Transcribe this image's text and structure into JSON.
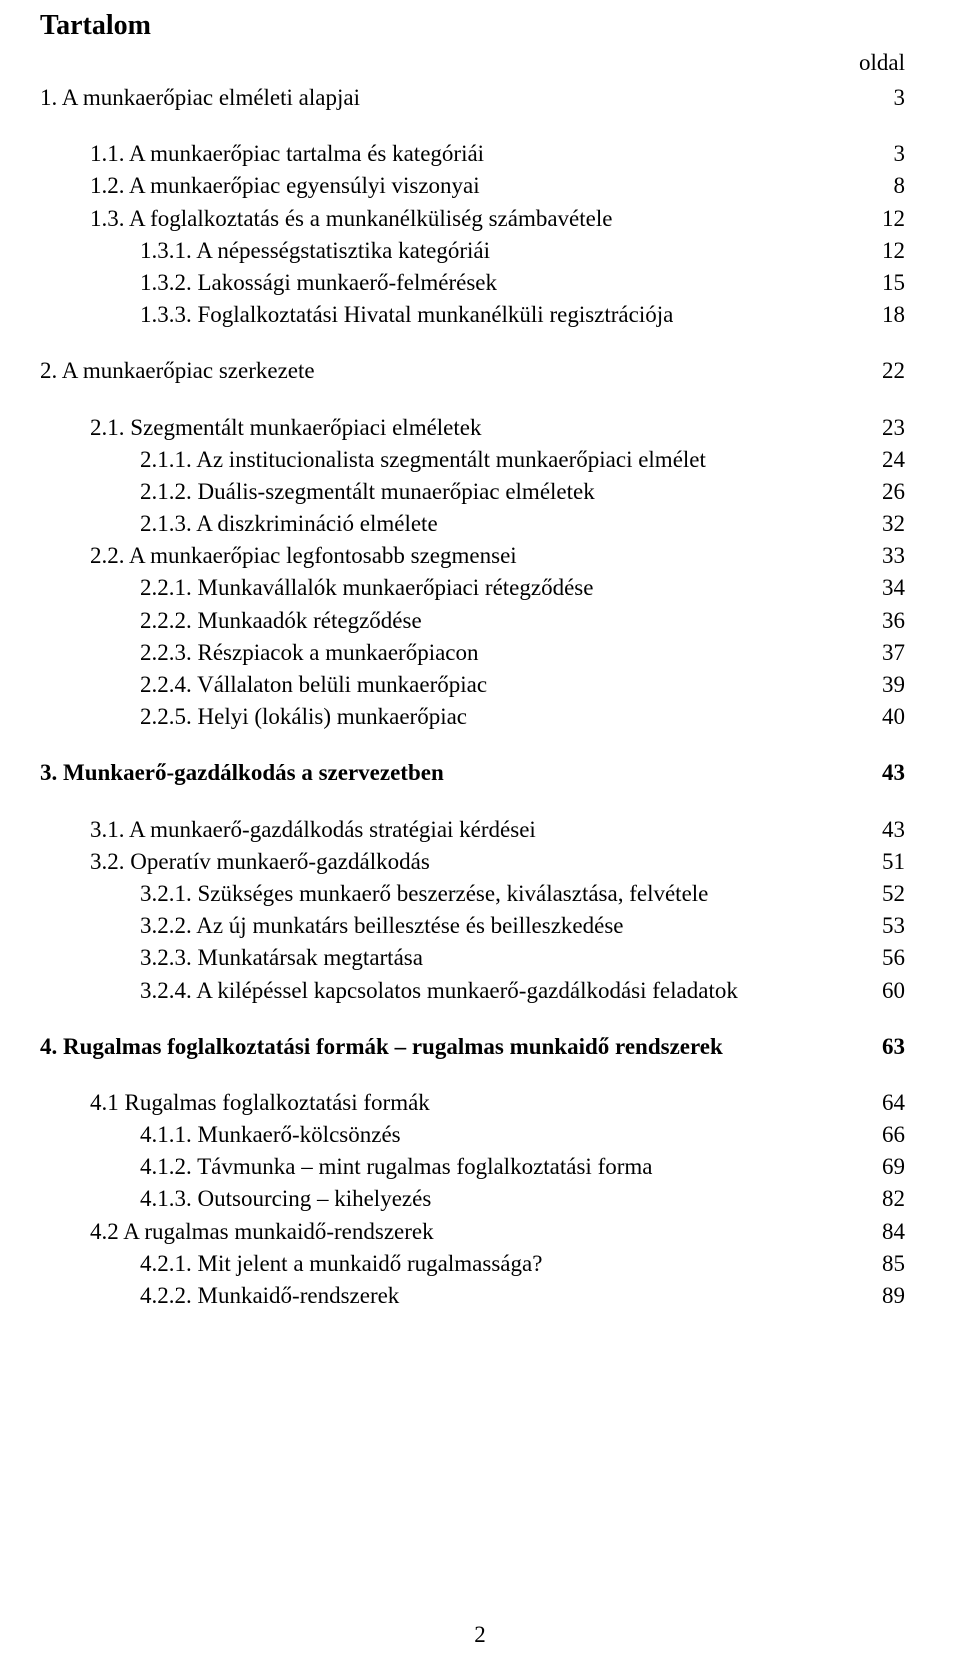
{
  "title": "Tartalom",
  "page_header_label": "oldal",
  "page_number": "2",
  "typography": {
    "font_family": "Times New Roman",
    "body_fontsize_pt": 17,
    "title_fontsize_pt": 21,
    "color": "#000000",
    "background": "#ffffff"
  },
  "entries": [
    {
      "label": "1. A munkaerőpiac elméleti alapjai",
      "page": "3",
      "bold": false,
      "indent": 0
    },
    {
      "spacer": true
    },
    {
      "label": "1.1. A munkaerőpiac tartalma és kategóriái",
      "page": "3",
      "bold": false,
      "indent": 1
    },
    {
      "label": "1.2. A munkaerőpiac egyensúlyi viszonyai",
      "page": "8",
      "bold": false,
      "indent": 1
    },
    {
      "label": "1.3. A foglalkoztatás és a munkanélküliség számbavétele",
      "page": "12",
      "bold": false,
      "indent": 1
    },
    {
      "label": "1.3.1. A népességstatisztika kategóriái",
      "page": "12",
      "bold": false,
      "indent": 2
    },
    {
      "label": "1.3.2. Lakossági munkaerő-felmérések",
      "page": "15",
      "bold": false,
      "indent": 2
    },
    {
      "label": "1.3.3. Foglalkoztatási Hivatal munkanélküli regisztrációja",
      "page": "18",
      "bold": false,
      "indent": 2
    },
    {
      "spacer": true
    },
    {
      "label": "2. A munkaerőpiac szerkezete",
      "page": "22",
      "bold": false,
      "indent": 0
    },
    {
      "spacer": true
    },
    {
      "label": "2.1. Szegmentált munkaerőpiaci elméletek",
      "page": "23",
      "bold": false,
      "indent": 1
    },
    {
      "label": "2.1.1. Az institucionalista szegmentált munkaerőpiaci elmélet",
      "page": "24",
      "bold": false,
      "indent": 2
    },
    {
      "label": "2.1.2. Duális-szegmentált munaerőpiac elméletek",
      "page": "26",
      "bold": false,
      "indent": 2
    },
    {
      "label": "2.1.3. A diszkrimináció elmélete",
      "page": "32",
      "bold": false,
      "indent": 2
    },
    {
      "label": "2.2. A munkaerőpiac legfontosabb szegmensei",
      "page": "33",
      "bold": false,
      "indent": 1
    },
    {
      "label": "2.2.1. Munkavállalók munkaerőpiaci rétegződése",
      "page": "34",
      "bold": false,
      "indent": 2
    },
    {
      "label": "2.2.2. Munkaadók rétegződése",
      "page": "36",
      "bold": false,
      "indent": 2
    },
    {
      "label": "2.2.3. Részpiacok a munkaerőpiacon",
      "page": "37",
      "bold": false,
      "indent": 2
    },
    {
      "label": "2.2.4. Vállalaton belüli munkaerőpiac",
      "page": "39",
      "bold": false,
      "indent": 2
    },
    {
      "label": "2.2.5. Helyi (lokális) munkaerőpiac",
      "page": "40",
      "bold": false,
      "indent": 2
    },
    {
      "spacer": true
    },
    {
      "label": "3. Munkaerő-gazdálkodás a szervezetben",
      "page": "43",
      "bold": true,
      "indent": 0
    },
    {
      "spacer": true
    },
    {
      "label": "3.1. A munkaerő-gazdálkodás stratégiai kérdései",
      "page": "43",
      "bold": false,
      "indent": 1
    },
    {
      "label": "3.2. Operatív munkaerő-gazdálkodás",
      "page": "51",
      "bold": false,
      "indent": 1
    },
    {
      "label": "3.2.1. Szükséges munkaerő beszerzése, kiválasztása, felvétele",
      "page": "52",
      "bold": false,
      "indent": 2
    },
    {
      "label": "3.2.2. Az új munkatárs beillesztése és beilleszkedése",
      "page": "53",
      "bold": false,
      "indent": 2
    },
    {
      "label": "3.2.3. Munkatársak megtartása",
      "page": "56",
      "bold": false,
      "indent": 2
    },
    {
      "label": "3.2.4. A kilépéssel kapcsolatos munkaerő-gazdálkodási feladatok",
      "page": "60",
      "bold": false,
      "indent": 2
    },
    {
      "spacer": true
    },
    {
      "label": "4. Rugalmas foglalkoztatási formák – rugalmas munkaidő rendszerek",
      "page": "63",
      "bold": true,
      "indent": 0
    },
    {
      "spacer": true
    },
    {
      "label": "4.1 Rugalmas foglalkoztatási formák",
      "page": "64",
      "bold": false,
      "indent": 1
    },
    {
      "label": "4.1.1. Munkaerő-kölcsönzés",
      "page": "66",
      "bold": false,
      "indent": 2
    },
    {
      "label": "4.1.2. Távmunka – mint rugalmas foglalkoztatási forma",
      "page": "69",
      "bold": false,
      "indent": 2
    },
    {
      "label": "4.1.3. Outsourcing – kihelyezés",
      "page": "82",
      "bold": false,
      "indent": 2
    },
    {
      "label": "4.2 A rugalmas munkaidő-rendszerek",
      "page": "84",
      "bold": false,
      "indent": 1
    },
    {
      "label": "4.2.1. Mit jelent a munkaidő rugalmassága?",
      "page": "85",
      "bold": false,
      "indent": 2
    },
    {
      "label": "4.2.2. Munkaidő-rendszerek",
      "page": "89",
      "bold": false,
      "indent": 2
    }
  ]
}
